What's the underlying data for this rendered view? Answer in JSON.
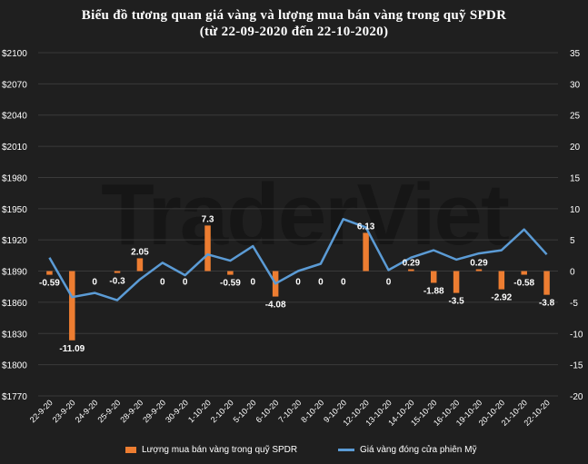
{
  "title": {
    "line1": "Biểu đồ tương quan giá vàng và lượng mua bán vàng trong quỹ SPDR",
    "line2": "(từ 22-09-2020 đến 22-10-2020)"
  },
  "watermark": "TraderViet",
  "legend": {
    "bar_label": "Lượng mua bán vàng trong quỹ SPDR",
    "line_label": "Giá vàng đóng cửa phiên Mỹ"
  },
  "colors": {
    "background": "#1f1f1f",
    "bar": "#ed7d31",
    "line": "#5b9bd5",
    "grid": "#3a3a3a",
    "text": "#ffffff"
  },
  "chart_data": {
    "type": "bar",
    "categories": [
      "22-9-20",
      "23-9-20",
      "24-9-20",
      "25-9-20",
      "28-9-20",
      "29-9-20",
      "30-9-20",
      "1-10-20",
      "2-10-20",
      "5-10-20",
      "6-10-20",
      "7-10-20",
      "8-10-20",
      "9-10-20",
      "12-10-20",
      "13-10-20",
      "14-10-20",
      "15-10-20",
      "16-10-20",
      "19-10-20",
      "20-10-20",
      "21-10-20",
      "22-10-20"
    ],
    "series": [
      {
        "name": "Lượng mua bán vàng trong quỹ SPDR",
        "type": "bar",
        "axis": "right",
        "values": [
          -0.59,
          -11.09,
          0,
          -0.3,
          2.05,
          0,
          0,
          7.3,
          -0.59,
          0,
          -4.08,
          0,
          0,
          0,
          6.13,
          0,
          0.29,
          -1.88,
          -3.5,
          0.29,
          -2.92,
          -0.58,
          -3.8
        ],
        "labels": [
          "-0.59",
          "-11.09",
          "0",
          "-0.3",
          "2.05",
          "0",
          "0",
          "7.3",
          "-0.59",
          "0",
          "-4.08",
          "0",
          "0",
          "0",
          "6.13",
          "0",
          "0.29",
          "-1.88",
          "-3.5",
          "0.29",
          "-2.92",
          "-0.58",
          "-3.8"
        ]
      },
      {
        "name": "Giá vàng đóng cửa phiên Mỹ",
        "type": "line",
        "axis": "left",
        "values": [
          1903,
          1865,
          1869,
          1862,
          1882,
          1898,
          1886,
          1906,
          1900,
          1914,
          1878,
          1890,
          1897,
          1940,
          1932,
          1891,
          1903,
          1910,
          1901,
          1907,
          1910,
          1930,
          1906
        ]
      }
    ],
    "y_left": {
      "min": 1770,
      "max": 2100,
      "ticks": [
        "$1770",
        "$1800",
        "$1830",
        "$1860",
        "$1890",
        "$1920",
        "$1950",
        "$1980",
        "$2010",
        "$2040",
        "$2070",
        "$2100"
      ]
    },
    "y_right": {
      "min": -20,
      "max": 35,
      "ticks": [
        "-20",
        "-15",
        "-10",
        "-5",
        "0",
        "5",
        "10",
        "15",
        "20",
        "25",
        "30",
        "35"
      ]
    },
    "grid": true,
    "legend_position": "bottom"
  }
}
